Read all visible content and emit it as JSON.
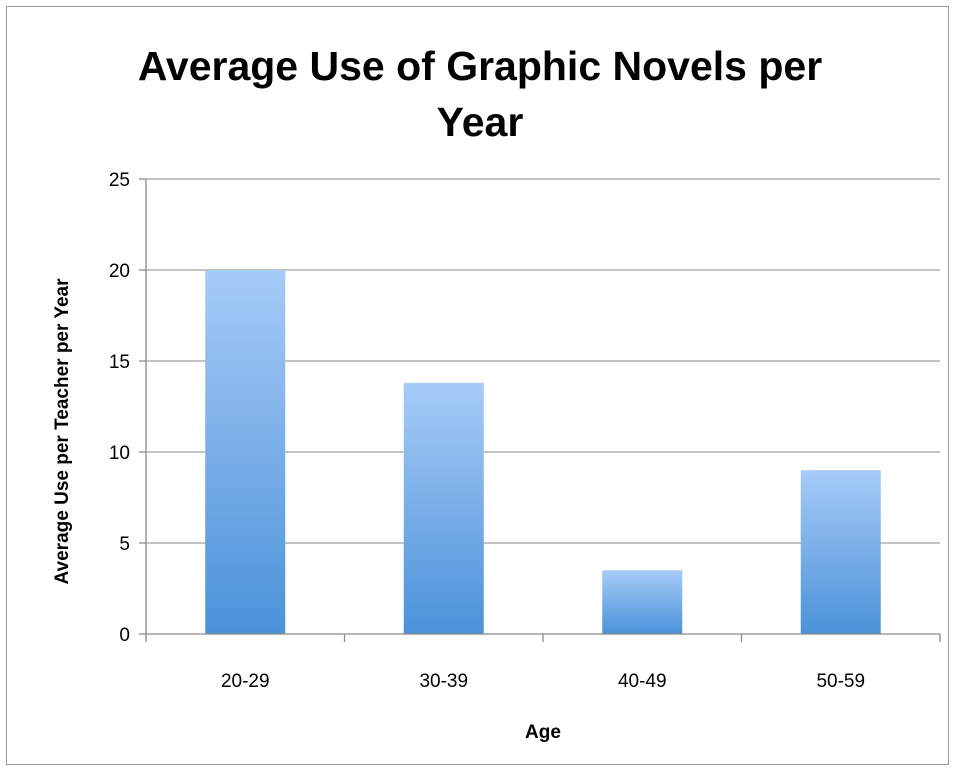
{
  "chart_data": {
    "type": "bar",
    "title": "Average Use of Graphic Novels per Year",
    "xlabel": "Age",
    "ylabel": "Average Use per Teacher per Year",
    "categories": [
      "20-29",
      "30-39",
      "40-49",
      "50-59"
    ],
    "values": [
      20,
      13.8,
      3.5,
      9
    ],
    "ylim": [
      0,
      25
    ],
    "yticks": [
      0,
      5,
      10,
      15,
      20,
      25
    ],
    "grid": true,
    "bar_color": "#5a9de0",
    "legend": "none"
  }
}
